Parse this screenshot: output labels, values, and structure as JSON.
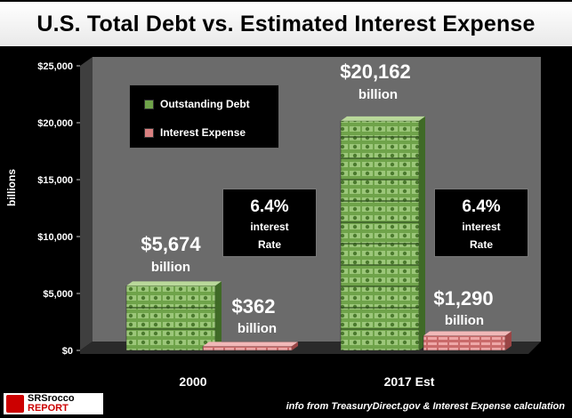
{
  "title": "U.S. Total Debt vs. Estimated Interest Expense",
  "ylabel": "billions",
  "legend": {
    "outstanding": "Outstanding Debt",
    "interest": "Interest Expense"
  },
  "rate_boxes": [
    {
      "pct": "6.4%",
      "line1": "interest",
      "line2": "Rate"
    },
    {
      "pct": "6.4%",
      "line1": "interest",
      "line2": "Rate"
    }
  ],
  "labels": {
    "debt_2000_value": "$5,674",
    "debt_2000_unit": "billion",
    "int_2000_value": "$362",
    "int_2000_unit": "billion",
    "debt_2017_value": "$20,162",
    "debt_2017_unit": "billion",
    "int_2017_value": "$1,290",
    "int_2017_unit": "billion"
  },
  "source": "info from TreasuryDirect.gov & Interest Expense calculation",
  "logo": {
    "mark": "SRSrocco",
    "top": "SRSrocco",
    "bottom": "REPORT"
  },
  "colors": {
    "debt": "#6fa34a",
    "debt_light": "#b9d89a",
    "interest": "#d98080",
    "interest_light": "#f1b8b8"
  },
  "chart_data": {
    "type": "bar",
    "categories": [
      "2000",
      "2017 Est"
    ],
    "series": [
      {
        "name": "Outstanding Debt",
        "values": [
          5674,
          20162
        ]
      },
      {
        "name": "Interest Expense",
        "values": [
          362,
          1290
        ]
      }
    ],
    "ylim": [
      0,
      25000
    ],
    "yticks": [
      0,
      5000,
      10000,
      15000,
      20000,
      25000
    ],
    "ytick_labels": [
      "$0",
      "$5,000",
      "$10,000",
      "$15,000",
      "$20,000",
      "$25,000"
    ],
    "ylabel": "billions",
    "grid": false,
    "legend_position": "top-left"
  }
}
